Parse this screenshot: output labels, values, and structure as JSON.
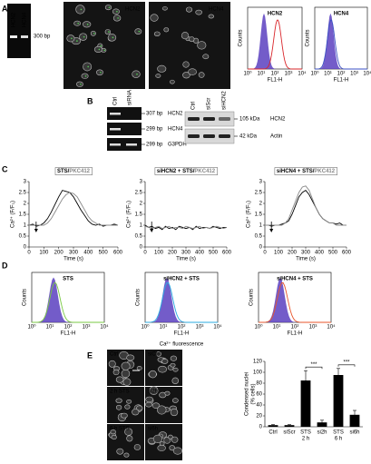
{
  "flow_axes": {
    "ylabel": "Counts",
    "xlabel": "FL1-H",
    "xticks": [
      "10⁰",
      "10¹",
      "10²",
      "10³",
      "10⁴"
    ]
  },
  "panels": {
    "a": {
      "label": "A",
      "gel_lanes": [
        "HCN2",
        "HCN4"
      ],
      "gel_marker": "300 bp",
      "images": [
        "HCN2",
        "HCN4"
      ],
      "histograms": [
        {
          "title": "HCN2",
          "color": "#d9252a"
        },
        {
          "title": "HCN4",
          "color": "#3a4fc4"
        }
      ]
    },
    "b": {
      "label": "B",
      "pcr_lanes": [
        "Ctrl",
        "siRNA"
      ],
      "pcr_rows": [
        {
          "size": "307 bp",
          "gene": "HCN2"
        },
        {
          "size": "299 bp",
          "gene": "HCN4"
        },
        {
          "size": "299 bp",
          "gene": "G3PDH"
        }
      ],
      "wb_lanes": [
        "Ctrl",
        "siScr",
        "siHCN2"
      ],
      "wb_rows": [
        {
          "size": "105 kDa",
          "protein": "HCN2"
        },
        {
          "size": "42 kDa",
          "protein": "Actin"
        }
      ]
    },
    "c": {
      "label": "C"
    },
    "d": {
      "label": "D",
      "histograms": [
        {
          "title": "STS",
          "color": "#7ac943"
        },
        {
          "title": "siHCN2 + STS",
          "color": "#29abe2"
        },
        {
          "title": "siHCN4 + STS",
          "color": "#e8542a"
        }
      ],
      "caption": "Ca²⁺ fluorescence"
    },
    "e": {
      "label": "E",
      "images": [
        "Ctrl",
        "siCtrl",
        "2 h STS",
        "si2h",
        "6 h STS",
        "si6h"
      ]
    }
  },
  "chart_data": [
    {
      "type": "line",
      "title_parts": [
        {
          "text": "STS/",
          "color": "#000000"
        },
        {
          "text": "PKC412",
          "color": "#888888"
        }
      ],
      "xlabel": "Time (s)",
      "ylabel": "Ca²⁺ (F/F₀)",
      "x": [
        0,
        25,
        50,
        75,
        100,
        125,
        150,
        175,
        200,
        225,
        250,
        275,
        300,
        325,
        350,
        375,
        400,
        425,
        450,
        475,
        500,
        525,
        550,
        575,
        600
      ],
      "series": [
        {
          "color": "#000000",
          "values": [
            1.0,
            1.05,
            0.95,
            1.0,
            1.1,
            1.3,
            1.6,
            1.95,
            2.3,
            2.6,
            2.55,
            2.5,
            2.3,
            2.0,
            1.7,
            1.45,
            1.2,
            1.05,
            1.0,
            1.05,
            0.95,
            1.0,
            1.0,
            1.05,
            1.0
          ]
        },
        {
          "color": "#888888",
          "values": [
            1.0,
            1.0,
            1.0,
            1.0,
            1.0,
            1.1,
            1.3,
            1.6,
            1.9,
            2.2,
            2.4,
            2.5,
            2.45,
            2.3,
            2.0,
            1.7,
            1.4,
            1.2,
            1.1,
            1.0,
            1.0,
            1.0,
            1.0,
            1.0,
            1.0
          ]
        }
      ],
      "xlim": [
        0,
        600
      ],
      "xticks": [
        0,
        100,
        200,
        300,
        400,
        500,
        600
      ],
      "ylim": [
        0,
        3
      ],
      "yticks": [
        0,
        0.5,
        1,
        1.5,
        2,
        2.5,
        3
      ]
    },
    {
      "type": "line",
      "title_parts": [
        {
          "text": "siHCN2 + STS/",
          "color": "#000000"
        },
        {
          "text": "PKC412",
          "color": "#888888"
        }
      ],
      "xlabel": "Time (s)",
      "ylabel": "Ca²⁺ (F/F₀)",
      "x": [
        0,
        25,
        50,
        75,
        100,
        125,
        150,
        175,
        200,
        225,
        250,
        275,
        300,
        325,
        350,
        375,
        400,
        425,
        450,
        475,
        500,
        525,
        550,
        575,
        600
      ],
      "series": [
        {
          "color": "#000000",
          "values": [
            1.0,
            0.9,
            0.95,
            0.85,
            0.9,
            0.8,
            0.95,
            0.85,
            0.9,
            0.8,
            0.95,
            0.9,
            0.85,
            0.9,
            0.8,
            0.95,
            0.85,
            0.9,
            0.9,
            0.85,
            0.95,
            0.9,
            0.85,
            0.9,
            0.9
          ]
        },
        {
          "color": "#888888",
          "values": [
            0.95,
            0.9,
            0.85,
            0.9,
            0.95,
            0.85,
            0.9,
            0.95,
            0.85,
            0.9,
            0.9,
            0.85,
            0.95,
            0.9,
            0.85,
            0.9,
            0.95,
            0.85,
            0.9,
            0.85,
            0.9,
            0.95,
            0.9,
            0.85,
            0.9
          ]
        }
      ],
      "xlim": [
        0,
        600
      ],
      "xticks": [
        0,
        100,
        200,
        300,
        400,
        500,
        600
      ],
      "ylim": [
        0,
        3
      ],
      "yticks": [
        0,
        0.5,
        1,
        1.5,
        2,
        2.5,
        3
      ]
    },
    {
      "type": "line",
      "title_parts": [
        {
          "text": "siHCN4 + STS/",
          "color": "#000000"
        },
        {
          "text": "PKC412",
          "color": "#888888"
        }
      ],
      "xlabel": "Time (s)",
      "ylabel": "Ca²⁺ (F/F₀)",
      "x": [
        0,
        25,
        50,
        75,
        100,
        125,
        150,
        175,
        200,
        225,
        250,
        275,
        300,
        325,
        350,
        375,
        400,
        425,
        450,
        475,
        500,
        525,
        550,
        575,
        600
      ],
      "series": [
        {
          "color": "#000000",
          "values": [
            1.0,
            1.0,
            0.95,
            1.0,
            1.0,
            1.05,
            1.1,
            1.2,
            1.5,
            1.9,
            2.3,
            2.5,
            2.6,
            2.4,
            2.1,
            1.8,
            1.5,
            1.3,
            1.2,
            1.1,
            1.1,
            1.05,
            1.1,
            1.0,
            1.0
          ]
        },
        {
          "color": "#888888",
          "values": [
            1.0,
            1.0,
            1.0,
            1.0,
            1.0,
            1.0,
            1.1,
            1.3,
            1.7,
            2.1,
            2.5,
            2.75,
            2.8,
            2.6,
            2.2,
            1.8,
            1.5,
            1.3,
            1.2,
            1.1,
            1.1,
            1.0,
            1.0,
            1.0,
            1.0
          ]
        }
      ],
      "xlim": [
        0,
        600
      ],
      "xticks": [
        0,
        100,
        200,
        300,
        400,
        500,
        600
      ],
      "ylim": [
        0,
        3
      ],
      "yticks": [
        0,
        0.5,
        1,
        1.5,
        2,
        2.5,
        3
      ]
    },
    {
      "type": "bar",
      "ylabel_lines": [
        "Condensed nuclei",
        "(% cells)"
      ],
      "categories": [
        "Ctrl",
        "siScr",
        "STS",
        "si2h",
        "STS",
        "si6h"
      ],
      "category_groups": [
        null,
        null,
        "2 h",
        null,
        "6 h",
        null
      ],
      "values": [
        3,
        3,
        85,
        8,
        95,
        22
      ],
      "errors": [
        1,
        1,
        18,
        4,
        12,
        8
      ],
      "color": "#000000",
      "annotations": [
        "***",
        "***"
      ],
      "ylim": [
        0,
        120
      ],
      "yticks": [
        0,
        20,
        40,
        60,
        80,
        100,
        120
      ]
    }
  ]
}
